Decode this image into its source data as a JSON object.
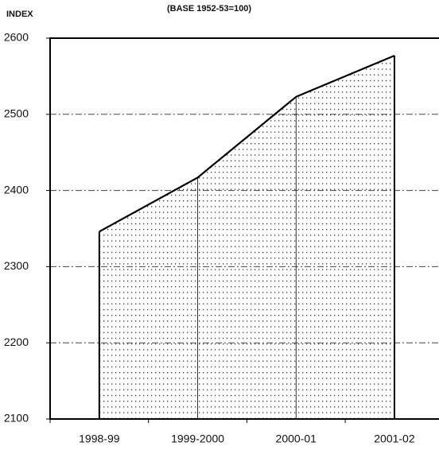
{
  "chart_data": {
    "type": "area",
    "title": "(BASE 1952-53=100)",
    "y_label": "INDEX",
    "categories": [
      "1998-99",
      "1999-2000",
      "2000-01",
      "2001-02"
    ],
    "values": [
      2346,
      2417,
      2523,
      2577
    ],
    "color": "#000000",
    "ylim": [
      2100,
      2600
    ],
    "yticks": [
      2100,
      2200,
      2300,
      2400,
      2500,
      2600
    ],
    "grid": true
  }
}
